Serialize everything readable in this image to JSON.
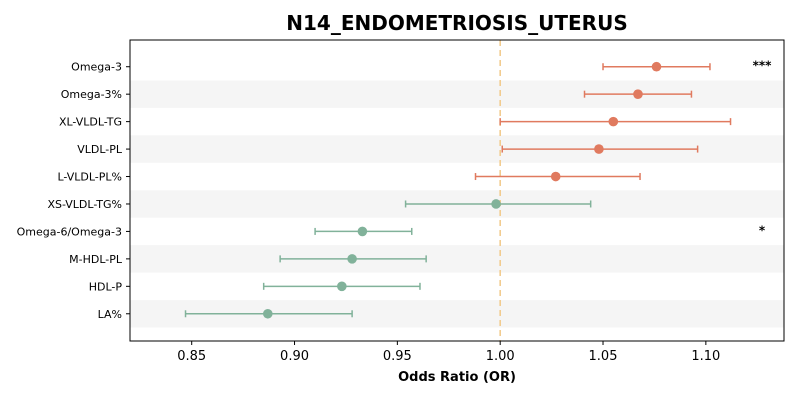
{
  "chart_data": {
    "type": "forest",
    "title": "N14_ENDOMETRIOSIS_UTERUS",
    "xlabel": "Odds Ratio (OR)",
    "xlim": [
      0.82,
      1.138
    ],
    "xticks": [
      "0.85",
      "0.90",
      "0.95",
      "1.00",
      "1.05",
      "1.10"
    ],
    "reference_line": 1.0,
    "colors": {
      "risk": "#e07a5f",
      "protective": "#81b29a",
      "reference": "#f2cc8f",
      "band": "#f5f5f5"
    },
    "rows": [
      {
        "label": "Omega-3",
        "or": 1.076,
        "lo": 1.05,
        "hi": 1.102,
        "sig": "***"
      },
      {
        "label": "Omega-3%",
        "or": 1.067,
        "lo": 1.041,
        "hi": 1.093,
        "sig": ""
      },
      {
        "label": "XL-VLDL-TG",
        "or": 1.055,
        "lo": 1.0,
        "hi": 1.112,
        "sig": ""
      },
      {
        "label": "VLDL-PL",
        "or": 1.048,
        "lo": 1.001,
        "hi": 1.096,
        "sig": ""
      },
      {
        "label": "L-VLDL-PL%",
        "or": 1.027,
        "lo": 0.988,
        "hi": 1.068,
        "sig": ""
      },
      {
        "label": "XS-VLDL-TG%",
        "or": 0.998,
        "lo": 0.954,
        "hi": 1.044,
        "sig": ""
      },
      {
        "label": "Omega-6/Omega-3",
        "or": 0.933,
        "lo": 0.91,
        "hi": 0.957,
        "sig": "*"
      },
      {
        "label": "M-HDL-PL",
        "or": 0.928,
        "lo": 0.893,
        "hi": 0.964,
        "sig": ""
      },
      {
        "label": "HDL-P",
        "or": 0.923,
        "lo": 0.885,
        "hi": 0.961,
        "sig": ""
      },
      {
        "label": "LA%",
        "or": 0.887,
        "lo": 0.847,
        "hi": 0.928,
        "sig": ""
      }
    ]
  }
}
